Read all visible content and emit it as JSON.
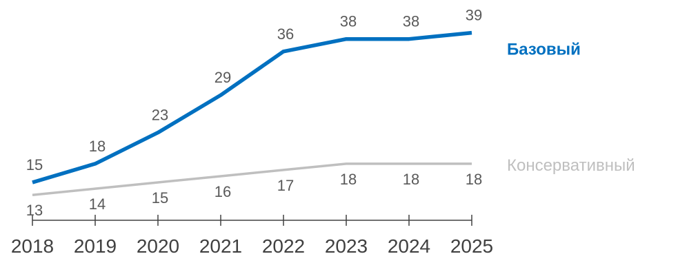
{
  "chart_data": {
    "type": "line",
    "categories": [
      "2018",
      "2019",
      "2020",
      "2021",
      "2022",
      "2023",
      "2024",
      "2025"
    ],
    "series": [
      {
        "name": "Базовый",
        "values": [
          15,
          18,
          23,
          29,
          36,
          38,
          38,
          39
        ],
        "color": "#0070C0",
        "line_width": "thick",
        "label_position": "above",
        "legend_style": "bold"
      },
      {
        "name": "Консервативный",
        "values": [
          13,
          14,
          15,
          16,
          17,
          18,
          18,
          18
        ],
        "color": "#BFBFBF",
        "line_width": "normal",
        "label_position": "below",
        "legend_style": "normal"
      }
    ],
    "legend": "right, aligned with line ends",
    "grid": false,
    "y_axis_visible": false,
    "x_axis_ticks": true,
    "label_color": "#595959",
    "axis_color": "#404040"
  }
}
